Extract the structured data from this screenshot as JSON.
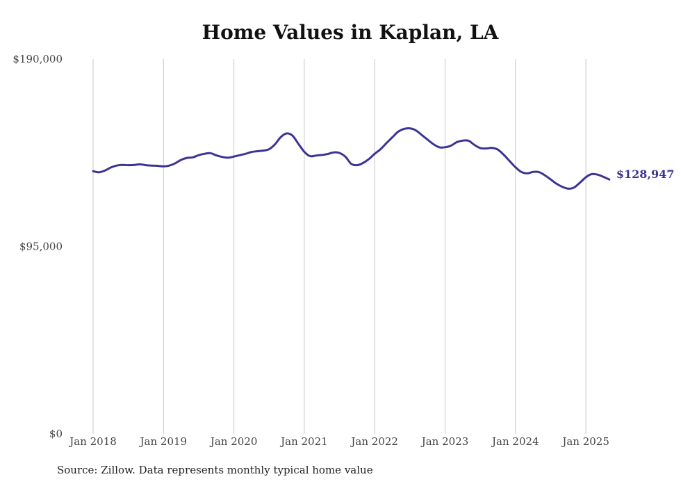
{
  "chart_data": {
    "type": "line",
    "title": "Home Values in Kaplan, LA",
    "xlabel": "",
    "ylabel": "",
    "ylim": [
      0,
      190000
    ],
    "y_ticks": [
      "$190,000",
      "$95,000",
      "$0"
    ],
    "y_tick_values": [
      190000,
      95000,
      0
    ],
    "x_ticks": [
      "Jan 2018",
      "Jan 2019",
      "Jan 2020",
      "Jan 2021",
      "Jan 2022",
      "Jan 2023",
      "Jan 2024",
      "Jan 2025"
    ],
    "x_tick_values": [
      "2018-01",
      "2019-01",
      "2020-01",
      "2021-01",
      "2022-01",
      "2023-01",
      "2024-01",
      "2025-01"
    ],
    "grid": "vertical",
    "line_color": "#3b3494",
    "end_label": "$128,947",
    "series": [
      {
        "x": [
          "2018-01",
          "2018-02",
          "2018-03",
          "2018-04",
          "2018-05",
          "2018-06",
          "2018-07",
          "2018-08",
          "2018-09",
          "2018-10",
          "2018-11",
          "2018-12",
          "2019-01",
          "2019-02",
          "2019-03",
          "2019-04",
          "2019-05",
          "2019-06",
          "2019-07",
          "2019-08",
          "2019-09",
          "2019-10",
          "2019-11",
          "2019-12",
          "2020-01",
          "2020-02",
          "2020-03",
          "2020-04",
          "2020-05",
          "2020-06",
          "2020-07",
          "2020-08",
          "2020-09",
          "2020-10",
          "2020-11",
          "2020-12",
          "2021-01",
          "2021-02",
          "2021-03",
          "2021-04",
          "2021-05",
          "2021-06",
          "2021-07",
          "2021-08",
          "2021-09",
          "2021-10",
          "2021-11",
          "2021-12",
          "2022-01",
          "2022-02",
          "2022-03",
          "2022-04",
          "2022-05",
          "2022-06",
          "2022-07",
          "2022-08",
          "2022-09",
          "2022-10",
          "2022-11",
          "2022-12",
          "2023-01",
          "2023-02",
          "2023-03",
          "2023-04",
          "2023-05",
          "2023-06",
          "2023-07",
          "2023-08",
          "2023-09",
          "2023-10",
          "2023-11",
          "2023-12",
          "2024-01",
          "2024-02",
          "2024-03",
          "2024-04",
          "2024-05",
          "2024-06",
          "2024-07",
          "2024-08",
          "2024-09",
          "2024-10",
          "2024-11",
          "2024-12",
          "2025-01",
          "2025-02",
          "2025-03",
          "2025-04",
          "2025-05"
        ],
        "values": [
          133200,
          132600,
          133500,
          135000,
          136000,
          136300,
          136200,
          136300,
          136700,
          136200,
          136000,
          135900,
          135600,
          136000,
          137200,
          138900,
          139900,
          140200,
          141300,
          142000,
          142300,
          141200,
          140400,
          140000,
          140600,
          141300,
          142000,
          142900,
          143300,
          143600,
          144300,
          146800,
          150500,
          152300,
          151200,
          147000,
          143000,
          140800,
          141100,
          141400,
          141900,
          142700,
          142400,
          140500,
          136900,
          136200,
          137300,
          139300,
          142000,
          144300,
          147400,
          150300,
          153200,
          154600,
          154900,
          153900,
          151600,
          149200,
          146900,
          145300,
          145300,
          146100,
          147900,
          148700,
          148600,
          146500,
          144900,
          144700,
          145000,
          144100,
          141500,
          138300,
          135200,
          132800,
          132100,
          132800,
          132700,
          131100,
          129000,
          126800,
          125200,
          124300,
          124900,
          127400,
          130100,
          131700,
          131400,
          130300,
          128947
        ]
      }
    ]
  },
  "source_note": "Source: Zillow. Data represents monthly typical home value"
}
